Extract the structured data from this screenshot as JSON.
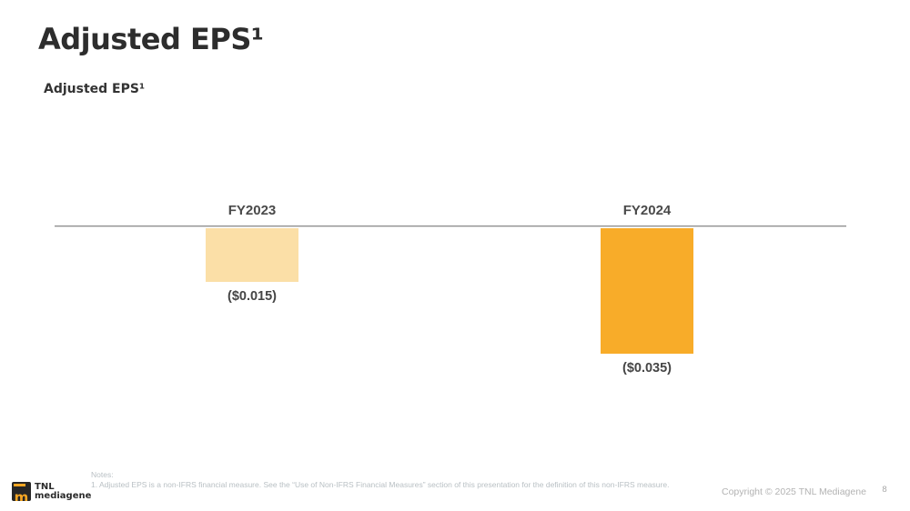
{
  "slide": {
    "title": "Adjusted EPS¹",
    "subtitle": "Adjusted EPS¹"
  },
  "chart_data": {
    "type": "bar",
    "title": "Adjusted EPS¹",
    "categories": [
      "FY2023",
      "FY2024"
    ],
    "values": [
      -0.015,
      -0.035
    ],
    "value_labels": [
      "($0.015)",
      "($0.035)"
    ],
    "bar_colors": [
      "#FBDFA7",
      "#F8AC29"
    ],
    "baseline": 0,
    "ylim": [
      -0.04,
      0
    ],
    "grid": false,
    "legend_position": "none",
    "axis_color": "#8C8C8C",
    "orientation": "vertical-below-baseline"
  },
  "footer": {
    "logo": {
      "icon": "tnl-mediagene-mark",
      "icon_glyph": "m",
      "line1": "TNL",
      "line2": "mediagene",
      "dark": "#262626",
      "orange": "#F5A623"
    },
    "notes_label": "Notes:",
    "note_1": "1. Adjusted EPS is a non-IFRS financial measure. See the “Use of Non-IFRS Financial Measures” section of this presentation for the definition of this non-IFRS measure.",
    "copyright": "Copyright © 2025 TNL Mediagene",
    "page_number": "8"
  }
}
